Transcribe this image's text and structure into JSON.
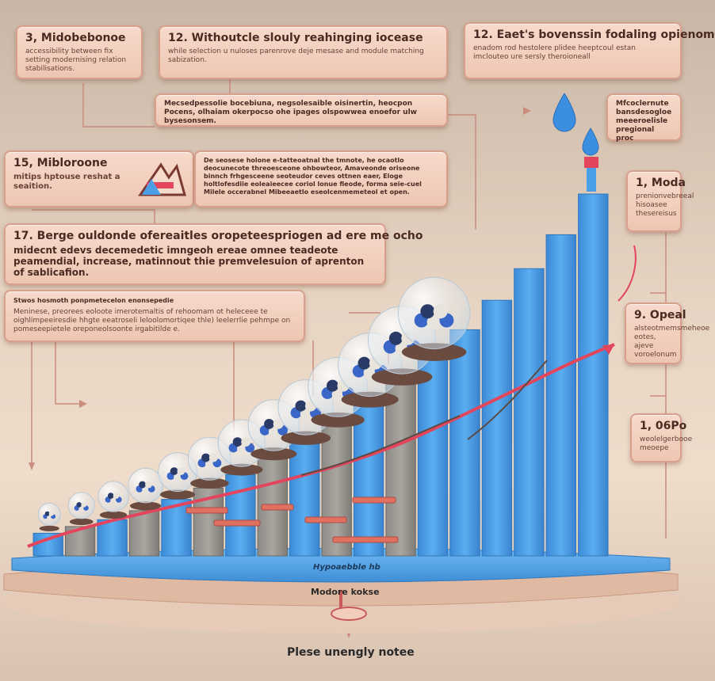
{
  "cards": {
    "c1": {
      "title": "3, Midobebonoe",
      "body": "accessibility between fix setting modernising relation stabilisations."
    },
    "c2": {
      "title": "12. Withoutcle slouly reahinging iocease",
      "body": "while selection u nuloses parenrove deje mesase and module matching sabization."
    },
    "c3": {
      "title": "12. Eaet's bovenssin fodaling opienom",
      "body": "enadom rod hestolere plidee heeptcoul estan imclouteo ure sersly theroioneall"
    },
    "c4": {
      "text": "Mecsedpessolie bocebiuna, negsolesaible oisinertin, heocpon Pocens, olhaiam okerpocso ohe ipages olspowwea enoefor ulw bysesonsem."
    },
    "c5": {
      "text": "Mfcoclernute bansdesogloe meeeroelisle pregional proc"
    },
    "c6": {
      "title": "15, Mibloroone",
      "body": "mitips hptouse reshat a seaition."
    },
    "c7": {
      "text": "De seosese holone e-tatteoatnal the tmnote, he ocaotlo deocunecote threoesceone ohbowteor, Amaveonde oriseone binnch frhgesceene seoteudor ceves ottnen eaer, Eloge holtlofesdiie eoleaieecee coriol lonue fieode, forma seie-cuel Milele occerabnel Mibeeaetlo eseolcenmemeteol et open."
    },
    "c8": {
      "title": "1, Moda",
      "body": "prenionvebreeal hisoasee thesereisus"
    },
    "c9": {
      "title": "17. Berge ouldonde ofereaitles oropeteespriogen ad ere me ocho",
      "body": "midecnt edevs decemedetic imngeoh ereae omnee teadeote peamendial, increase, matinnout thie premvelesuion of aprenton of sablicafion."
    },
    "c10": {
      "title": "Stwos hosmoth ponpmetecelon enonsepedie",
      "body": "Meninese, preorees eoloote imerotemaltis of rehoomam ot heleceee te oighlimpeeiresdie hhgte eeatroseli leloolomortiqee thle) leelerrlie pehmpe on pomeseepietele oreponeolsoonte irgabitilde e."
    },
    "c11": {
      "title": "9. Opeal",
      "body": "alsteotmemsmeheoe eotes, ajeve voroelonum"
    },
    "c12": {
      "title": "1, 06Po",
      "body": "weolelgerbooe meoepe"
    }
  },
  "floor": {
    "platform_label": "Hypoaebble hb",
    "base_label": "Modore kokse",
    "caption": "Plese unengly notee"
  },
  "colors": {
    "bar_blue": "#4a9fe6",
    "curve_red": "#e2455c",
    "card_fill": "#f2cdbb",
    "card_border": "#d8a08c",
    "drop_blue": "#3b8fe0"
  },
  "chart_data": {
    "type": "bar",
    "series": [
      {
        "values": [
          1,
          1.3,
          1.6,
          2,
          2.5,
          3,
          3.6,
          4.3,
          5,
          5.8,
          6.7,
          7.7,
          8.8,
          10,
          11.3,
          12.7,
          14.2,
          16
        ]
      }
    ]
  }
}
